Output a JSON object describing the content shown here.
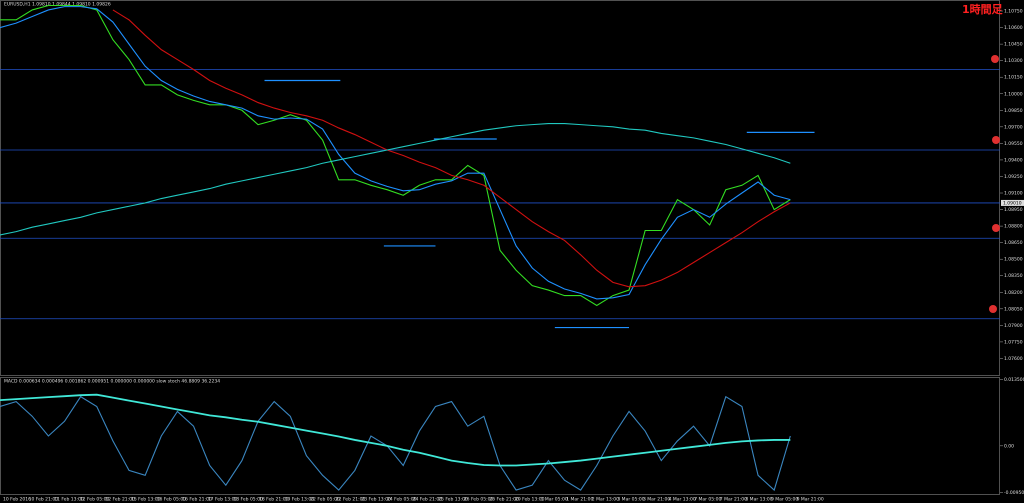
{
  "chart_data": [
    {
      "type": "line",
      "title": "EURUSD,H1 1.09810 1.09844 1.09810 1.09826",
      "annotation": "1時間足",
      "x": [
        0,
        1,
        2,
        3,
        4,
        5,
        6,
        7,
        8,
        9,
        10,
        11,
        12,
        13,
        14,
        15,
        16,
        17,
        18,
        19,
        20,
        21,
        22,
        23,
        24,
        25,
        26,
        27,
        28,
        29,
        30,
        31,
        32,
        33,
        34,
        35,
        36,
        37,
        38,
        39,
        40,
        41,
        42,
        43,
        44,
        45,
        46,
        47,
        48,
        49
      ],
      "xlim": [
        0,
        62
      ],
      "ylim": [
        1.0745,
        1.1085
      ],
      "yticks": [
        {
          "value": 1.076,
          "label": "1.07600"
        },
        {
          "value": 1.0775,
          "label": "1.07750"
        },
        {
          "value": 1.079,
          "label": "1.07900"
        },
        {
          "value": 1.0805,
          "label": "1.08050"
        },
        {
          "value": 1.082,
          "label": "1.08200"
        },
        {
          "value": 1.0835,
          "label": "1.08350"
        },
        {
          "value": 1.085,
          "label": "1.08500"
        },
        {
          "value": 1.0865,
          "label": "1.08650"
        },
        {
          "value": 1.088,
          "label": "1.08800"
        },
        {
          "value": 1.0895,
          "label": "1.08950"
        },
        {
          "value": 1.091,
          "label": "1.09100"
        },
        {
          "value": 1.0925,
          "label": "1.09250"
        },
        {
          "value": 1.094,
          "label": "1.09400"
        },
        {
          "value": 1.0955,
          "label": "1.09550"
        },
        {
          "value": 1.097,
          "label": "1.09700"
        },
        {
          "value": 1.0985,
          "label": "1.09850"
        },
        {
          "value": 1.1,
          "label": "1.10000"
        },
        {
          "value": 1.1015,
          "label": "1.10150"
        },
        {
          "value": 1.103,
          "label": "1.10300"
        },
        {
          "value": 1.1045,
          "label": "1.10450"
        },
        {
          "value": 1.106,
          "label": "1.10600"
        },
        {
          "value": 1.1075,
          "label": "1.10750"
        }
      ],
      "current_price": {
        "value": 1.0901,
        "label": "1.09010"
      },
      "series": [
        {
          "color": "#33dd22",
          "values": [
            1.1067,
            1.1067,
            1.1076,
            1.108,
            1.108,
            1.108,
            1.1076,
            1.1049,
            1.1031,
            1.1008,
            1.1008,
            1.0999,
            1.0994,
            1.099,
            1.099,
            1.0985,
            1.0972,
            1.0976,
            1.0981,
            1.0976,
            1.0958,
            1.0922,
            1.0922,
            1.0917,
            1.0913,
            1.0908,
            1.0917,
            1.0922,
            1.0922,
            1.0935,
            1.0926,
            1.0858,
            1.084,
            1.0826,
            1.0822,
            1.0817,
            1.0817,
            1.0808,
            1.0817,
            1.0822,
            1.0876,
            1.0876,
            1.0904,
            1.0895,
            1.0881,
            1.0913,
            1.0917,
            1.0926,
            1.0895,
            1.0904
          ]
        },
        {
          "color": "#1e90ff",
          "values": [
            1.106,
            1.1064,
            1.107,
            1.1076,
            1.1079,
            1.1079,
            1.1077,
            1.1065,
            1.1045,
            1.1025,
            1.1012,
            1.1004,
            1.0998,
            1.0993,
            1.099,
            1.0987,
            1.098,
            1.0977,
            1.0978,
            1.0977,
            1.0968,
            1.0945,
            1.0928,
            1.0921,
            1.0916,
            1.0912,
            1.0913,
            1.0918,
            1.0921,
            1.0928,
            1.0928,
            1.0895,
            1.0862,
            1.0842,
            1.083,
            1.0823,
            1.0819,
            1.0814,
            1.0815,
            1.0818,
            1.0845,
            1.0868,
            1.0888,
            1.0895,
            1.0888,
            1.09,
            1.091,
            1.092,
            1.0908,
            1.0904
          ]
        },
        {
          "color": "#d01010",
          "values": [
            null,
            null,
            null,
            null,
            null,
            null,
            null,
            1.1076,
            1.1067,
            1.1053,
            1.104,
            1.1031,
            1.1022,
            1.1012,
            1.1005,
            1.0999,
            1.0992,
            1.0987,
            1.0983,
            1.098,
            1.0976,
            1.0969,
            1.0963,
            1.0956,
            1.0949,
            1.0944,
            1.0938,
            1.0933,
            1.0926,
            1.0922,
            1.0917,
            1.0906,
            1.0895,
            1.0884,
            1.0875,
            1.0867,
            1.0854,
            1.084,
            1.0829,
            1.0825,
            1.0826,
            1.0831,
            1.0838,
            1.0847,
            1.0856,
            1.0865,
            1.0874,
            1.0884,
            1.0893,
            1.0901
          ]
        },
        {
          "color": "#20c8c0",
          "values": [
            1.0872,
            1.0875,
            1.0879,
            1.0882,
            1.0885,
            1.0888,
            1.0892,
            1.0895,
            1.0898,
            1.0901,
            1.0905,
            1.0908,
            1.0911,
            1.0914,
            1.0918,
            1.0921,
            1.0924,
            1.0927,
            1.093,
            1.0933,
            1.0937,
            1.094,
            1.0943,
            1.0946,
            1.0949,
            1.0952,
            1.0955,
            1.0958,
            1.0961,
            1.0964,
            1.0967,
            1.0969,
            1.0971,
            1.0972,
            1.0973,
            1.0973,
            1.0972,
            1.0971,
            1.097,
            1.0968,
            1.0967,
            1.0964,
            1.0962,
            1.096,
            1.0957,
            1.0954,
            1.095,
            1.0946,
            1.0942,
            1.0937
          ]
        }
      ],
      "hlines": {
        "color": "#2050c8",
        "values": [
          1.1022,
          1.0949,
          1.0901,
          1.0869,
          1.0796
        ]
      },
      "segments": {
        "color": "#1e90ff",
        "items": [
          {
            "x0": 16.4,
            "x1": 21.1,
            "value": 1.1012
          },
          {
            "x0": 26.9,
            "x1": 30.8,
            "value": 1.0959
          },
          {
            "x0": 23.8,
            "x1": 27.0,
            "value": 1.0862
          },
          {
            "x0": 34.4,
            "x1": 39.0,
            "value": 1.0788
          },
          {
            "x0": 46.3,
            "x1": 50.5,
            "value": 1.0965
          }
        ]
      }
    },
    {
      "type": "line",
      "title": "MACD 0.000634 0.000496 0.001862 0.000951 0.000000 0.000000 slow stoch 46.8809 36.2234",
      "x": [
        0,
        1,
        2,
        3,
        4,
        5,
        6,
        7,
        8,
        9,
        10,
        11,
        12,
        13,
        14,
        15,
        16,
        17,
        18,
        19,
        20,
        21,
        22,
        23,
        24,
        25,
        26,
        27,
        28,
        29,
        30,
        31,
        32,
        33,
        34,
        35,
        36,
        37,
        38,
        39,
        40,
        41,
        42,
        43,
        44,
        45,
        46,
        47,
        48,
        49
      ],
      "xlim": [
        0,
        62
      ],
      "ylim": [
        -0.01,
        0.014
      ],
      "yticks": [
        {
          "value": 0,
          "label": "0.00"
        },
        {
          "value": 0.0135,
          "label": "0.013500"
        },
        {
          "value": -0.0095,
          "label": "-0.009500"
        }
      ],
      "series": [
        {
          "color": "#3a86c0",
          "values": [
            0.008,
            0.009,
            0.006,
            0.002,
            0.005,
            0.01,
            0.008,
            0.001,
            -0.005,
            -0.006,
            0.002,
            0.007,
            0.004,
            -0.004,
            -0.008,
            -0.003,
            0.005,
            0.009,
            0.006,
            -0.002,
            -0.006,
            -0.009,
            -0.005,
            0.002,
            0.0,
            -0.004,
            0.003,
            0.008,
            0.009,
            0.004,
            0.006,
            -0.004,
            -0.009,
            -0.008,
            -0.003,
            -0.007,
            -0.009,
            -0.004,
            0.002,
            0.007,
            0.003,
            -0.003,
            0.001,
            0.004,
            0.0,
            0.01,
            0.008,
            -0.006,
            -0.009,
            0.002
          ]
        },
        {
          "color": "#40e8d8",
          "values": [
            0.0093,
            0.0095,
            0.0097,
            0.0099,
            0.0101,
            0.0103,
            0.0104,
            0.0098,
            0.0092,
            0.0086,
            0.008,
            0.0074,
            0.0068,
            0.0062,
            0.0058,
            0.0053,
            0.0049,
            0.0043,
            0.0037,
            0.0031,
            0.0025,
            0.0019,
            0.0012,
            0.0006,
            0.0,
            -0.0008,
            -0.0014,
            -0.0022,
            -0.003,
            -0.0035,
            -0.0039,
            -0.004,
            -0.004,
            -0.0038,
            -0.0036,
            -0.0033,
            -0.003,
            -0.0026,
            -0.0022,
            -0.0018,
            -0.0014,
            -0.001,
            -0.0006,
            -0.0002,
            0.0002,
            0.0006,
            0.0009,
            0.0011,
            0.0012,
            0.0012
          ]
        }
      ],
      "time_labels": [
        "10 Feb 2016",
        "10 Feb 21:00",
        "11 Feb 13:00",
        "12 Feb 05:00",
        "12 Feb 21:00",
        "15 Feb 13:00",
        "16 Feb 05:00",
        "16 Feb 21:00",
        "17 Feb 13:00",
        "18 Feb 05:00",
        "18 Feb 21:00",
        "19 Feb 13:00",
        "22 Feb 05:00",
        "22 Feb 21:00",
        "23 Feb 13:00",
        "24 Feb 05:00",
        "24 Feb 21:00",
        "25 Feb 13:00",
        "26 Feb 05:00",
        "26 Feb 21:00",
        "29 Feb 13:00",
        "1 Mar 05:00",
        "1 Mar 21:00",
        "2 Mar 13:00",
        "3 Mar 05:00",
        "3 Mar 21:00",
        "4 Mar 13:00",
        "7 Mar 05:00",
        "7 Mar 21:00",
        "8 Mar 13:00",
        "9 Mar 05:00",
        "9 Mar 21:00"
      ]
    }
  ]
}
